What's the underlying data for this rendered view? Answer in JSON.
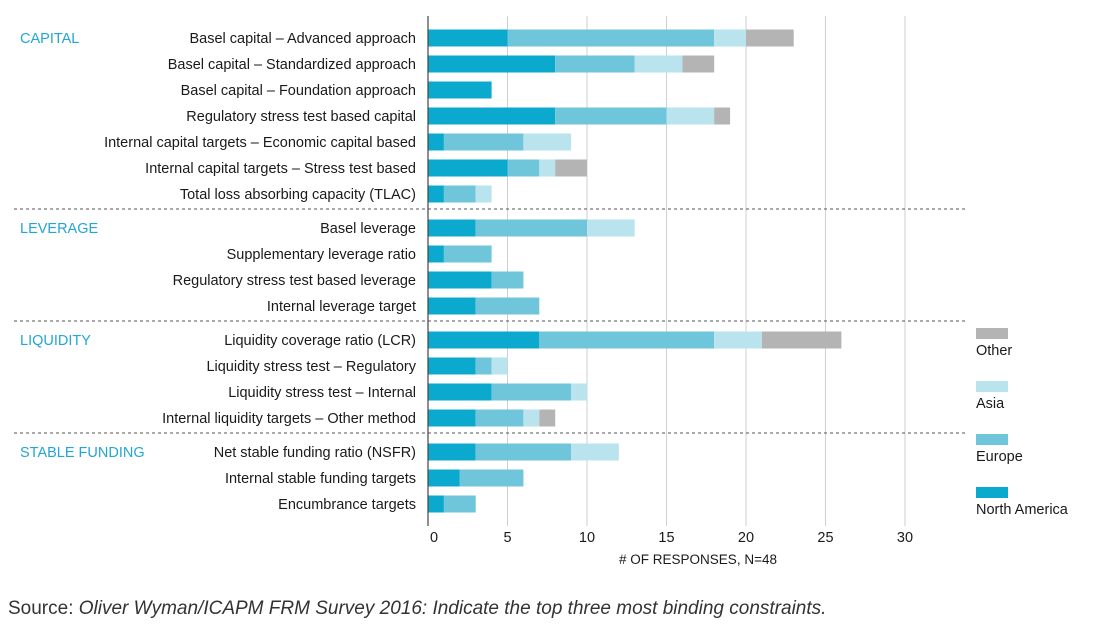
{
  "chart_data": {
    "type": "bar",
    "orientation": "horizontal",
    "stacked": true,
    "title": "",
    "xlabel": "# OF RESPONSES, N=48",
    "ylabel": "",
    "xlim": [
      0,
      33
    ],
    "xticks": [
      0,
      5,
      10,
      15,
      20,
      25,
      30
    ],
    "grid": "vertical",
    "legend_position": "right",
    "legend_order": [
      "Other",
      "Asia",
      "Europe",
      "North America"
    ],
    "colors": {
      "North America": "#0aa9cd",
      "Europe": "#6fc6db",
      "Asia": "#b9e3ed",
      "Other": "#b4b4b4"
    },
    "groups": [
      {
        "name": "CAPITAL",
        "categories": [
          "Basel capital – Advanced approach",
          "Basel capital – Standardized approach",
          "Basel capital – Foundation approach",
          "Regulatory stress test based capital",
          "Internal capital targets – Economic capital based",
          "Internal capital targets – Stress test based",
          "Total loss absorbing capacity (TLAC)"
        ]
      },
      {
        "name": "LEVERAGE",
        "categories": [
          "Basel leverage",
          "Supplementary leverage ratio",
          "Regulatory stress test based leverage",
          "Internal leverage target"
        ]
      },
      {
        "name": "LIQUIDITY",
        "categories": [
          "Liquidity coverage ratio (LCR)",
          "Liquidity stress test – Regulatory",
          "Liquidity stress test – Internal",
          "Internal liquidity targets – Other method"
        ]
      },
      {
        "name": "STABLE FUNDING",
        "categories": [
          "Net stable funding ratio (NSFR)",
          "Internal stable funding targets",
          "Encumbrance targets"
        ]
      }
    ],
    "series": [
      {
        "name": "North America",
        "values": [
          5,
          8,
          4,
          8,
          1,
          5,
          1,
          3,
          1,
          4,
          3,
          7,
          3,
          4,
          3,
          3,
          2,
          1
        ]
      },
      {
        "name": "Europe",
        "values": [
          13,
          5,
          0,
          7,
          5,
          2,
          2,
          7,
          3,
          2,
          4,
          11,
          1,
          5,
          3,
          6,
          4,
          2
        ]
      },
      {
        "name": "Asia",
        "values": [
          2,
          3,
          0,
          3,
          3,
          1,
          1,
          3,
          0,
          0,
          0,
          3,
          1,
          1,
          1,
          3,
          0,
          0
        ]
      },
      {
        "name": "Other",
        "values": [
          3,
          2,
          0,
          1,
          0,
          2,
          0,
          0,
          0,
          0,
          0,
          5,
          0,
          0,
          1,
          0,
          0,
          0
        ]
      }
    ]
  },
  "source": {
    "prefix": "Source: ",
    "text": "Oliver Wyman/ICAPM FRM Survey 2016: Indicate the top three most binding constraints."
  }
}
